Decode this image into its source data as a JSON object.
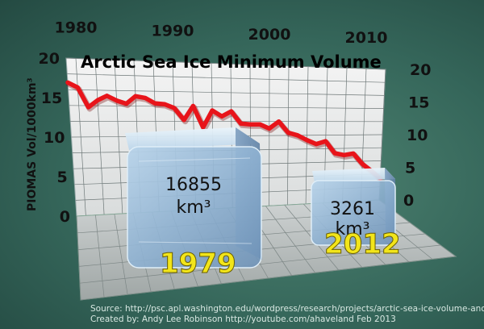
{
  "chart_data": {
    "type": "line",
    "title": "Arctic Sea Ice Minimum Volume",
    "ylabel": "PIOMAS Vol/1000km³",
    "xlabel": "",
    "x_ticks": [
      "1980",
      "1990",
      "2000",
      "2010"
    ],
    "y_ticks_left": [
      "0",
      "5",
      "10",
      "15",
      "20"
    ],
    "y_ticks_right": [
      "0",
      "5",
      "10",
      "15",
      "20"
    ],
    "xlim": [
      1979,
      2012
    ],
    "ylim": [
      0,
      20
    ],
    "grid": true,
    "line_color": "#e8141a",
    "x": [
      1979,
      1980,
      1981,
      1982,
      1983,
      1984,
      1985,
      1986,
      1987,
      1988,
      1989,
      1990,
      1991,
      1992,
      1993,
      1994,
      1995,
      1996,
      1997,
      1998,
      1999,
      2000,
      2001,
      2002,
      2003,
      2004,
      2005,
      2006,
      2007,
      2008,
      2009,
      2010,
      2011,
      2012
    ],
    "values": [
      16.9,
      16.3,
      13.8,
      14.7,
      15.3,
      14.7,
      14.3,
      15.3,
      15.1,
      14.4,
      14.3,
      13.8,
      12.2,
      14.1,
      11.2,
      13.5,
      12.7,
      13.4,
      11.7,
      11.6,
      11.6,
      11.0,
      12.0,
      10.4,
      10.0,
      9.3,
      8.7,
      9.1,
      7.3,
      7.0,
      7.2,
      5.6,
      4.5,
      3.3
    ],
    "cubes": [
      {
        "year": "1979",
        "value": "16855",
        "unit": "km³"
      },
      {
        "year": "2012",
        "value": "3261",
        "unit": "km³"
      }
    ]
  },
  "credits": {
    "source": "Source: http://psc.apl.washington.edu/wordpress/research/projects/arctic-sea-ice-volume-anomaly/",
    "created": "Created by: Andy Lee Robinson http://youtube.com/ahaveland Feb 2013"
  }
}
